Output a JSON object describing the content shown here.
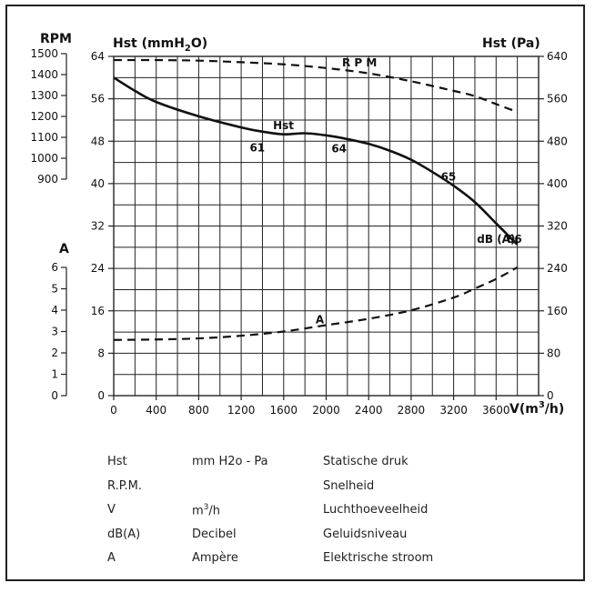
{
  "chart_data": {
    "type": "line",
    "x": {
      "label": "V(m3/h)",
      "label_parts": [
        "V(m",
        "3",
        "/h)"
      ],
      "ticks": [
        0,
        400,
        800,
        1200,
        1600,
        2000,
        2400,
        2800,
        3200,
        3600
      ],
      "tick_labels": [
        "0",
        "400",
        "800",
        "1200",
        "1600",
        "2000",
        "2400",
        "2800",
        "3200",
        "3600"
      ],
      "range": [
        0,
        4000
      ]
    },
    "y_left_hst": {
      "label": "Hst (mmH2O)",
      "label_parts": [
        "Hst (mmH",
        "2",
        "O)"
      ],
      "ticks": [
        0,
        8,
        16,
        24,
        32,
        40,
        48,
        56,
        64
      ],
      "tick_labels": [
        "0",
        "8",
        "16",
        "24",
        "32",
        "40",
        "48",
        "56",
        "64"
      ],
      "range": [
        0,
        64
      ]
    },
    "y_right_pa": {
      "label": "Hst (Pa)",
      "ticks": [
        0,
        80,
        160,
        240,
        320,
        400,
        480,
        560,
        640
      ],
      "tick_labels": [
        "0",
        "80",
        "160",
        "240",
        "320",
        "400",
        "480",
        "560",
        "640"
      ]
    },
    "y_rpm": {
      "label": "RPM",
      "ticks": [
        900,
        1000,
        1100,
        1200,
        1300,
        1400,
        1500
      ],
      "tick_labels": [
        "900",
        "1000",
        "1100",
        "1200",
        "1300",
        "1400",
        "1500"
      ],
      "range": [
        900,
        1500
      ]
    },
    "y_amp": {
      "label": "A",
      "ticks": [
        0,
        1,
        2,
        3,
        4,
        5,
        6
      ],
      "tick_labels": [
        "0",
        "1",
        "2",
        "3",
        "4",
        "5",
        "6"
      ],
      "range": [
        0,
        6
      ]
    },
    "series": [
      {
        "name": "Hst",
        "axis": "hst",
        "style": "solid",
        "points": [
          [
            0,
            60
          ],
          [
            200,
            57.5
          ],
          [
            400,
            55.4
          ],
          [
            800,
            52.7
          ],
          [
            1200,
            50.6
          ],
          [
            1400,
            49.8
          ],
          [
            1600,
            49.3
          ],
          [
            1800,
            49.5
          ],
          [
            2000,
            49.1
          ],
          [
            2200,
            48.4
          ],
          [
            2400,
            47.5
          ],
          [
            2600,
            46.2
          ],
          [
            2800,
            44.5
          ],
          [
            3000,
            42.2
          ],
          [
            3200,
            39.6
          ],
          [
            3400,
            36.5
          ],
          [
            3600,
            32.5
          ],
          [
            3800,
            28.5
          ]
        ]
      },
      {
        "name": "R P M",
        "axis": "hst",
        "style": "dashed",
        "points": [
          [
            0,
            63.3
          ],
          [
            400,
            63.3
          ],
          [
            800,
            63.2
          ],
          [
            1200,
            62.9
          ],
          [
            1600,
            62.5
          ],
          [
            2000,
            61.8
          ],
          [
            2400,
            60.8
          ],
          [
            2800,
            59.3
          ],
          [
            3200,
            57.5
          ],
          [
            3400,
            56.5
          ],
          [
            3600,
            55
          ],
          [
            3800,
            53.5
          ]
        ]
      },
      {
        "name": "A",
        "axis": "hst",
        "style": "dashed",
        "points": [
          [
            0,
            10.5
          ],
          [
            400,
            10.6
          ],
          [
            800,
            10.8
          ],
          [
            1200,
            11.3
          ],
          [
            1600,
            12.1
          ],
          [
            2000,
            13.3
          ],
          [
            2400,
            14.5
          ],
          [
            2800,
            16.1
          ],
          [
            3200,
            18.5
          ],
          [
            3400,
            20.2
          ],
          [
            3600,
            22
          ],
          [
            3800,
            24.2
          ]
        ]
      }
    ],
    "annotations": [
      {
        "text": "Hst",
        "x": 1500,
        "y": 50.3
      },
      {
        "text": "R P M",
        "x": 2150,
        "y": 62.1
      },
      {
        "text": "A",
        "x": 1900,
        "y": 13.6
      },
      {
        "text": "61",
        "x": 1280,
        "y": 46.1
      },
      {
        "text": "64",
        "x": 2050,
        "y": 45.9
      },
      {
        "text": "65",
        "x": 3080,
        "y": 40.6
      },
      {
        "text": "66",
        "x": 3700,
        "y": 28.8
      },
      {
        "text": "dB (A)",
        "x": 3420,
        "y": 28.8
      }
    ]
  },
  "legend": {
    "rows": [
      {
        "abbr": "Hst",
        "unit": "mm H2o - Pa",
        "desc": "Statische druk"
      },
      {
        "abbr": "R.P.M.",
        "unit": "",
        "desc": "Snelheid"
      },
      {
        "abbr": "V",
        "unit": "m3/h",
        "unit_base": "m",
        "unit_sup": "3",
        "unit_rest": "/h",
        "desc": "Luchthoeveelheid"
      },
      {
        "abbr": "dB(A)",
        "unit": "Decibel",
        "desc": "Geluidsniveau"
      },
      {
        "abbr": "A",
        "unit": "Ampère",
        "desc": "Elektrische stroom"
      }
    ]
  },
  "colors": {
    "line": "#111111",
    "grid": "#222222",
    "frame": "#222222",
    "background": "#ffffff"
  }
}
